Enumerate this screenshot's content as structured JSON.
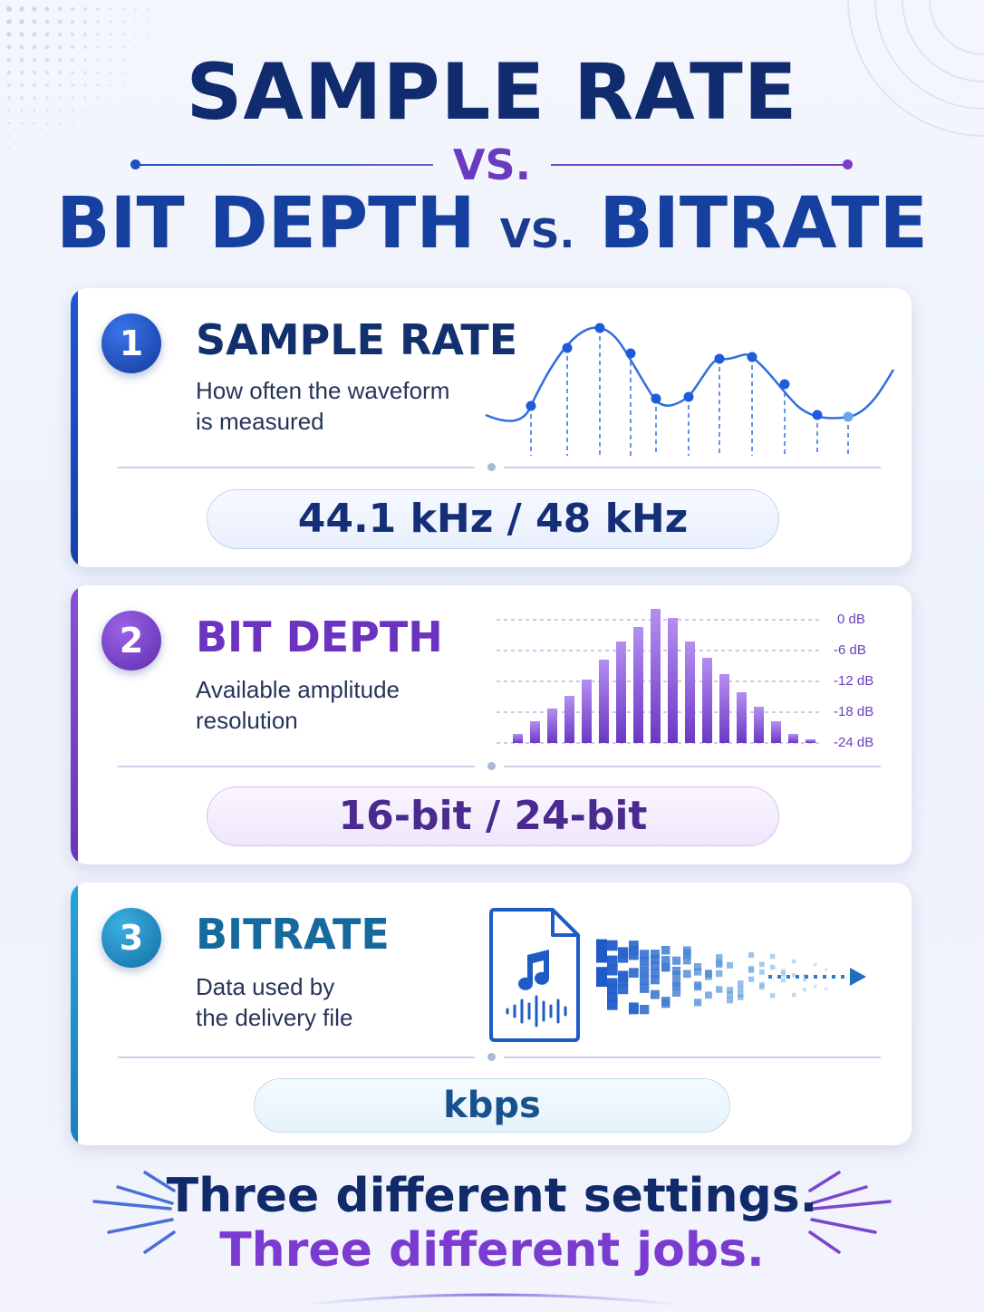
{
  "header": {
    "line1": "SAMPLE RATE",
    "vs_main": "VS.",
    "line2_left": "BIT DEPTH",
    "vs_small": "VS.",
    "line2_right": "BITRATE"
  },
  "cards": [
    {
      "number": "1",
      "title": "SAMPLE RATE",
      "desc_line1": "How often the waveform",
      "desc_line2": "is measured",
      "value": "44.1 kHz / 48 kHz",
      "color": "#1a4fc8"
    },
    {
      "number": "2",
      "title": "BIT DEPTH",
      "desc_line1": "Available amplitude",
      "desc_line2": "resolution",
      "value": "16-bit / 24-bit",
      "color": "#7a3cc9",
      "db_labels": [
        "0 dB",
        "-6 dB",
        "-12 dB",
        "-18 dB",
        "-24 dB"
      ]
    },
    {
      "number": "3",
      "title": "BITRATE",
      "desc_line1": "Data used by",
      "desc_line2": "the delivery file",
      "value": "kbps",
      "color": "#1a8cc0"
    }
  ],
  "footer": {
    "line1": "Three different settings.",
    "line2": "Three different jobs."
  },
  "icons": [
    "music-file-icon",
    "music-note-icon",
    "waveform-icon",
    "arrow-right-icon"
  ]
}
